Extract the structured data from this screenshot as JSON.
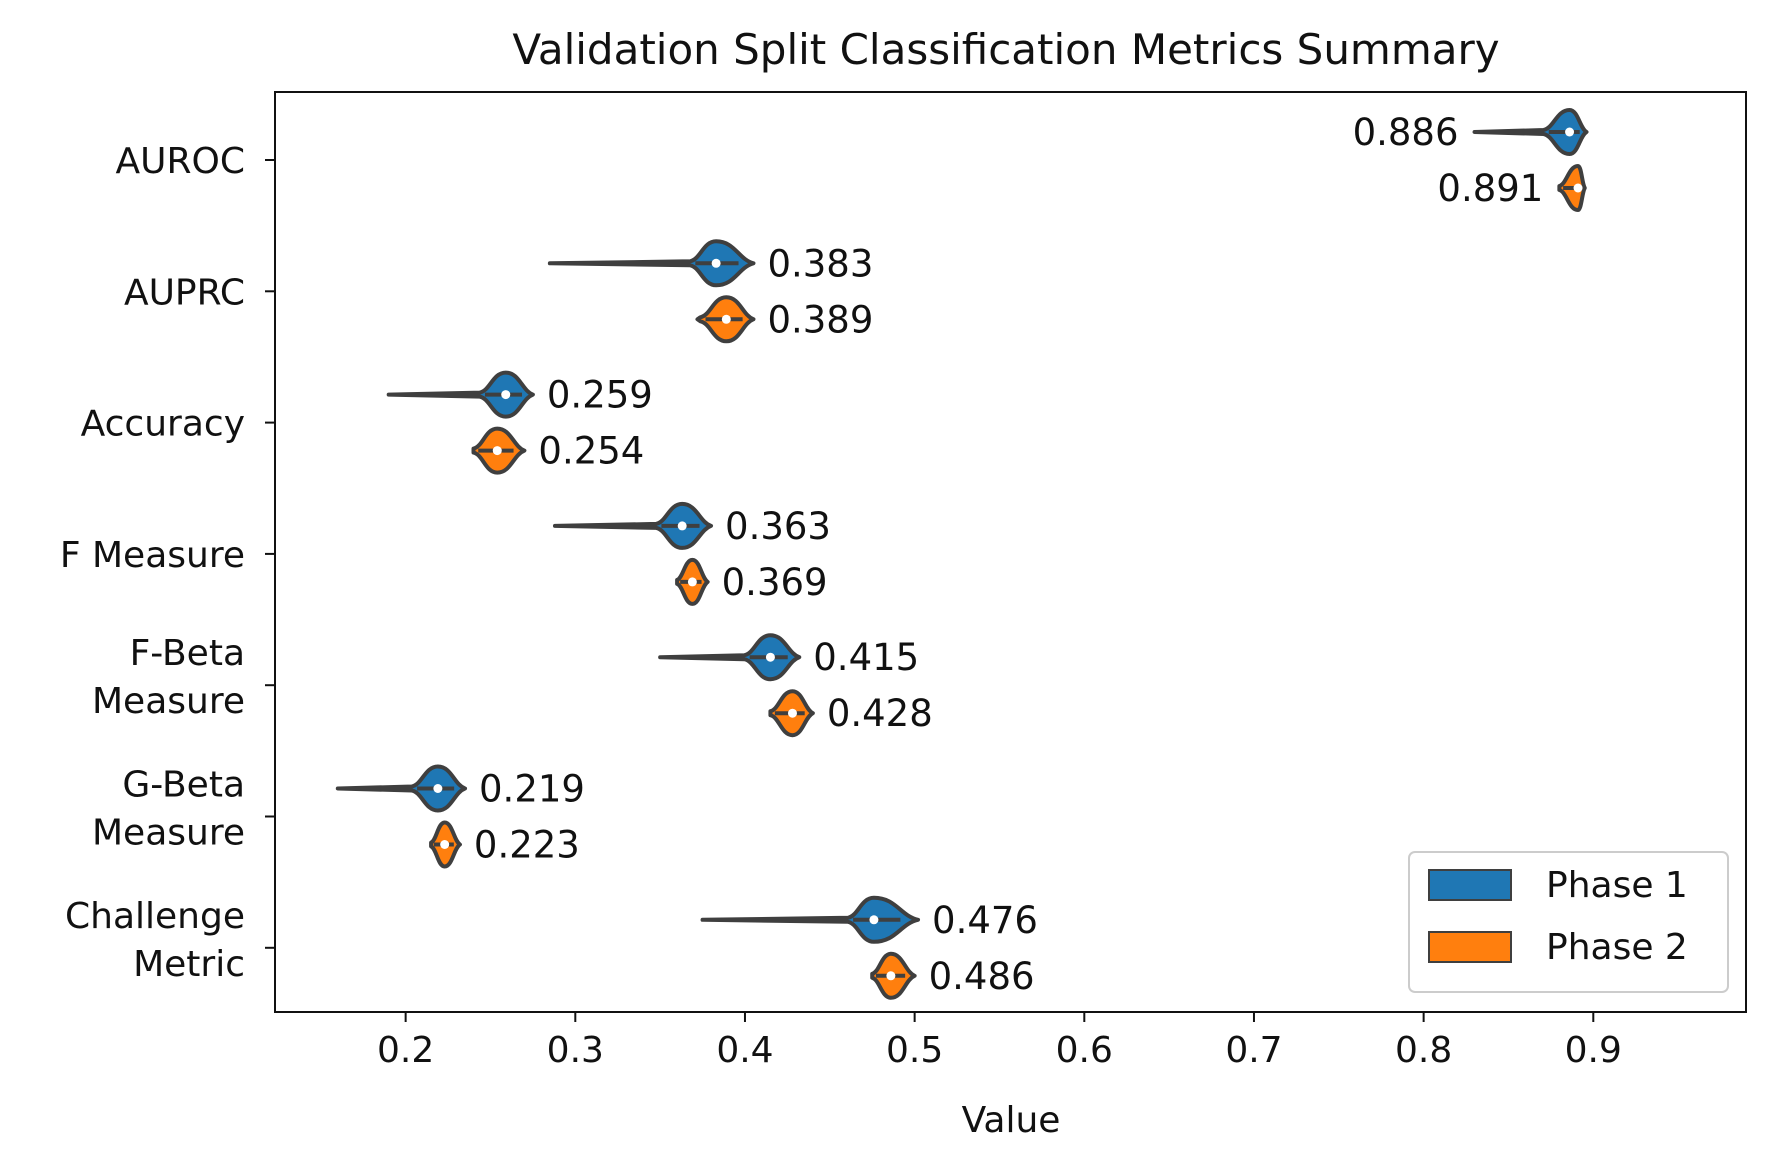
{
  "chart_data": {
    "type": "violin",
    "orientation": "horizontal",
    "title": "Validation Split Classification Metrics Summary",
    "xlabel": "Value",
    "ylabel": "",
    "xlim": [
      0.123,
      0.99
    ],
    "x_ticks": [
      0.2,
      0.3,
      0.4,
      0.5,
      0.6,
      0.7,
      0.8,
      0.9
    ],
    "grid": false,
    "legend": {
      "placement": "bottom-right"
    },
    "categories": [
      [
        "AUROC"
      ],
      [
        "AUPRC"
      ],
      [
        "Accuracy"
      ],
      [
        "F Measure"
      ],
      [
        "F-Beta",
        "Measure"
      ],
      [
        "G-Beta",
        "Measure"
      ],
      [
        "Challenge",
        "Metric"
      ]
    ],
    "series": [
      {
        "name": "Phase 1",
        "color": "#1f77b4",
        "medians": [
          0.886,
          0.383,
          0.259,
          0.363,
          0.415,
          0.219,
          0.476
        ],
        "labels": [
          "0.886",
          "0.383",
          "0.259",
          "0.363",
          "0.415",
          "0.219",
          "0.476"
        ],
        "min": [
          0.83,
          0.285,
          0.19,
          0.288,
          0.35,
          0.16,
          0.375
        ],
        "max": [
          0.896,
          0.405,
          0.275,
          0.38,
          0.432,
          0.235,
          0.502
        ]
      },
      {
        "name": "Phase 2",
        "color": "#ff7f0e",
        "medians": [
          0.891,
          0.389,
          0.254,
          0.369,
          0.428,
          0.223,
          0.486
        ],
        "labels": [
          "0.891",
          "0.389",
          "0.254",
          "0.369",
          "0.428",
          "0.223",
          "0.486"
        ],
        "min": [
          0.88,
          0.372,
          0.24,
          0.36,
          0.415,
          0.215,
          0.475
        ],
        "max": [
          0.895,
          0.405,
          0.27,
          0.378,
          0.44,
          0.232,
          0.5
        ]
      }
    ]
  }
}
